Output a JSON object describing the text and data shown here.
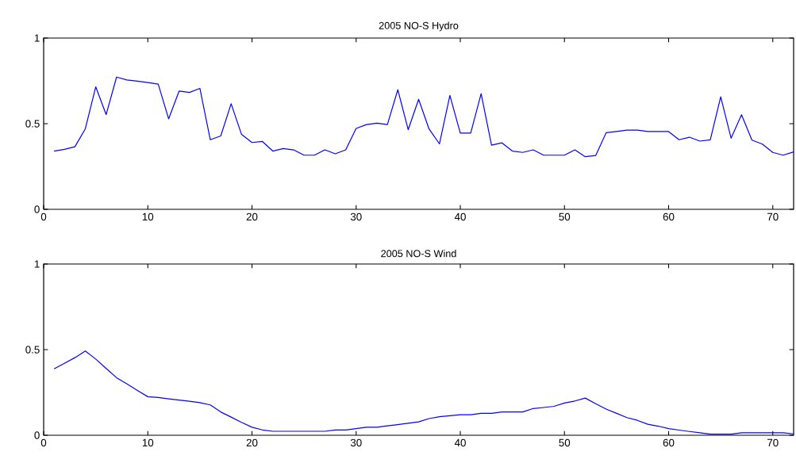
{
  "chart_data": [
    {
      "type": "line",
      "title": "2005 NO-S Hydro",
      "xlim": [
        0,
        72
      ],
      "ylim": [
        0,
        1
      ],
      "xticks": [
        0,
        10,
        20,
        30,
        40,
        50,
        60,
        70
      ],
      "yticks": [
        0,
        0.5,
        1
      ],
      "x": [
        1,
        2,
        3,
        4,
        5,
        6,
        7,
        8,
        9,
        10,
        11,
        12,
        13,
        14,
        15,
        16,
        17,
        18,
        19,
        20,
        21,
        22,
        23,
        24,
        25,
        26,
        27,
        28,
        29,
        30,
        31,
        32,
        33,
        34,
        35,
        36,
        37,
        38,
        39,
        40,
        41,
        42,
        43,
        44,
        45,
        46,
        47,
        48,
        49,
        50,
        51,
        52,
        53,
        54,
        55,
        56,
        57,
        58,
        59,
        60,
        61,
        62,
        63,
        64,
        65,
        66,
        67,
        68,
        69,
        70,
        71,
        72
      ],
      "series": [
        {
          "color": "#0000ff",
          "values": [
            0.34,
            0.35,
            0.365,
            0.47,
            0.715,
            0.553,
            0.772,
            0.755,
            0.748,
            0.74,
            0.731,
            0.528,
            0.69,
            0.682,
            0.706,
            0.406,
            0.428,
            0.616,
            0.437,
            0.39,
            0.396,
            0.34,
            0.355,
            0.347,
            0.316,
            0.316,
            0.347,
            0.324,
            0.347,
            0.472,
            0.495,
            0.503,
            0.495,
            0.698,
            0.465,
            0.642,
            0.469,
            0.382,
            0.665,
            0.445,
            0.445,
            0.675,
            0.374,
            0.388,
            0.34,
            0.332,
            0.347,
            0.316,
            0.316,
            0.316,
            0.347,
            0.307,
            0.314,
            0.447,
            0.454,
            0.462,
            0.462,
            0.454,
            0.454,
            0.454,
            0.406,
            0.421,
            0.398,
            0.406,
            0.657,
            0.415,
            0.552,
            0.404,
            0.381,
            0.332,
            0.316,
            0.335
          ]
        }
      ]
    },
    {
      "type": "line",
      "title": "2005 NO-S Wind",
      "xlim": [
        0,
        72
      ],
      "ylim": [
        0,
        1
      ],
      "xticks": [
        0,
        10,
        20,
        30,
        40,
        50,
        60,
        70
      ],
      "yticks": [
        0,
        0.5,
        1
      ],
      "x": [
        1,
        2,
        3,
        4,
        5,
        6,
        7,
        8,
        9,
        10,
        11,
        12,
        13,
        14,
        15,
        16,
        17,
        18,
        19,
        20,
        21,
        22,
        23,
        24,
        25,
        26,
        27,
        28,
        29,
        30,
        31,
        32,
        33,
        34,
        35,
        36,
        37,
        38,
        39,
        40,
        41,
        42,
        43,
        44,
        45,
        46,
        47,
        48,
        49,
        50,
        51,
        52,
        53,
        54,
        55,
        56,
        57,
        58,
        59,
        60,
        61,
        62,
        63,
        64,
        65,
        66,
        67,
        68,
        69,
        70,
        71,
        72
      ],
      "series": [
        {
          "color": "#0000ff",
          "values": [
            0.388,
            0.42,
            0.453,
            0.492,
            0.445,
            0.39,
            0.336,
            0.3,
            0.262,
            0.225,
            0.22,
            0.212,
            0.205,
            0.198,
            0.19,
            0.177,
            0.136,
            0.106,
            0.075,
            0.047,
            0.031,
            0.023,
            0.023,
            0.023,
            0.023,
            0.023,
            0.023,
            0.031,
            0.031,
            0.039,
            0.047,
            0.047,
            0.055,
            0.062,
            0.07,
            0.078,
            0.097,
            0.108,
            0.114,
            0.12,
            0.12,
            0.128,
            0.128,
            0.136,
            0.136,
            0.136,
            0.156,
            0.162,
            0.169,
            0.188,
            0.2,
            0.217,
            0.184,
            0.153,
            0.128,
            0.103,
            0.087,
            0.064,
            0.053,
            0.039,
            0.03,
            0.022,
            0.014,
            0.006,
            0.006,
            0.006,
            0.014,
            0.014,
            0.014,
            0.014,
            0.014,
            0.008
          ]
        }
      ]
    }
  ]
}
